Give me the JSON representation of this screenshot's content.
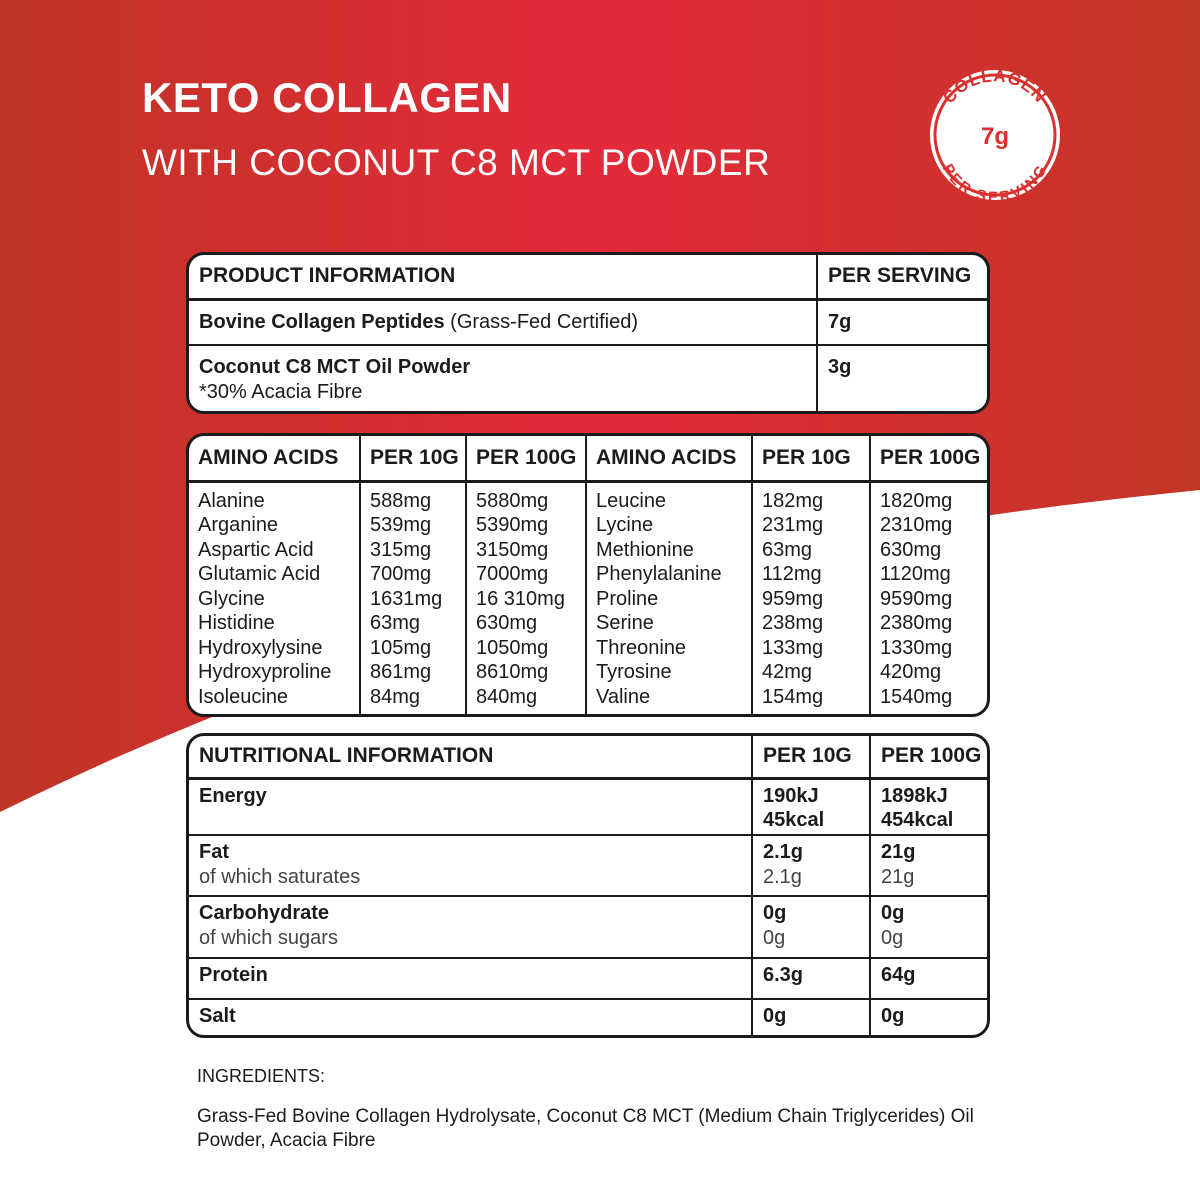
{
  "header": {
    "title": "KETO COLLAGEN",
    "subtitle": "WITH COCONUT C8 MCT POWDER",
    "badge": {
      "top": "COLLAGEN",
      "value": "7g",
      "bottom": "PER SERVING"
    }
  },
  "product_table": {
    "headers": [
      "PRODUCT INFORMATION",
      "PER SERVING"
    ],
    "rows": [
      {
        "name": "Bovine Collagen Peptides",
        "note": "(Grass-Fed Certified)",
        "value": "7g"
      },
      {
        "name": "Coconut C8 MCT Oil Powder",
        "detail": "*30% Acacia Fibre",
        "value": "3g"
      }
    ]
  },
  "amino_table": {
    "columns": [
      {
        "header": "AMINO ACIDS",
        "items": [
          "Alanine",
          "Arganine",
          "Aspartic Acid",
          "Glutamic Acid",
          "Glycine",
          "Histidine",
          "Hydroxylysine",
          "Hydroxyproline",
          "Isoleucine"
        ]
      },
      {
        "header": "PER 10G",
        "items": [
          "588mg",
          "539mg",
          "315mg",
          "700mg",
          "1631mg",
          "63mg",
          "105mg",
          "861mg",
          "84mg"
        ]
      },
      {
        "header": "PER 100G",
        "items": [
          "5880mg",
          "5390mg",
          "3150mg",
          "7000mg",
          "16 310mg",
          "630mg",
          "1050mg",
          "8610mg",
          "840mg"
        ]
      },
      {
        "header": "AMINO ACIDS",
        "items": [
          "Leucine",
          "Lycine",
          "Methionine",
          "Phenylalanine",
          "Proline",
          "Serine",
          "Threonine",
          "Tyrosine",
          "Valine"
        ]
      },
      {
        "header": "PER 10G",
        "items": [
          "182mg",
          "231mg",
          "63mg",
          "112mg",
          "959mg",
          "238mg",
          "133mg",
          "42mg",
          "154mg"
        ]
      },
      {
        "header": "PER 100G",
        "items": [
          "1820mg",
          "2310mg",
          "630mg",
          "1120mg",
          "9590mg",
          "2380mg",
          "1330mg",
          "420mg",
          "1540mg"
        ]
      }
    ]
  },
  "nutrition_table": {
    "headers": [
      "NUTRITIONAL INFORMATION",
      "PER 10G",
      "PER 100G"
    ],
    "rows": [
      {
        "name": "Energy",
        "per_10g": [
          "190kJ",
          "45kcal"
        ],
        "per_100g": [
          "1898kJ",
          "454kcal"
        ]
      },
      {
        "name": "Fat",
        "per_10g": [
          "2.1g"
        ],
        "per_100g": [
          "21g"
        ],
        "sub": {
          "name": "of which saturates",
          "per_10g": "2.1g",
          "per_100g": "21g"
        }
      },
      {
        "name": "Carbohydrate",
        "per_10g": [
          "0g"
        ],
        "per_100g": [
          "0g"
        ],
        "sub": {
          "name": "of which sugars",
          "per_10g": "0g",
          "per_100g": "0g"
        }
      },
      {
        "name": "Protein",
        "per_10g": [
          "6.3g"
        ],
        "per_100g": [
          "64g"
        ]
      },
      {
        "name": "Salt",
        "per_10g": [
          "0g"
        ],
        "per_100g": [
          "0g"
        ]
      }
    ]
  },
  "ingredients": {
    "label": "INGREDIENTS:",
    "text": "Grass-Fed Bovine Collagen Hydrolysate, Coconut C8 MCT (Medium Chain Triglycerides) Oil Powder, Acacia Fibre"
  }
}
